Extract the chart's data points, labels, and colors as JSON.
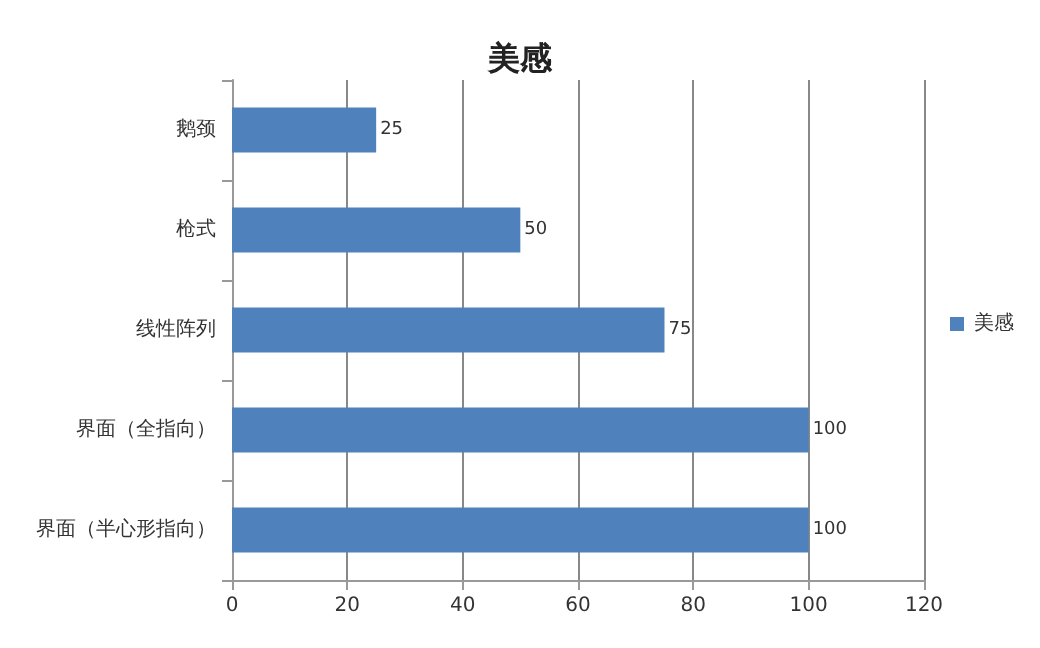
{
  "chart_data": {
    "type": "bar",
    "orientation": "horizontal",
    "title": "美感",
    "categories": [
      "鹅颈",
      "枪式",
      "线性阵列",
      "界面（全指向）",
      "界面（半心形指向）"
    ],
    "series": [
      {
        "name": "美感",
        "color": "#4f81bd",
        "values": [
          25,
          50,
          75,
          100,
          100
        ]
      }
    ],
    "xlim": [
      0,
      120
    ],
    "xticks": [
      0,
      20,
      40,
      60,
      80,
      100,
      120
    ],
    "grid": "x",
    "legend": "right",
    "data_labels": true
  }
}
